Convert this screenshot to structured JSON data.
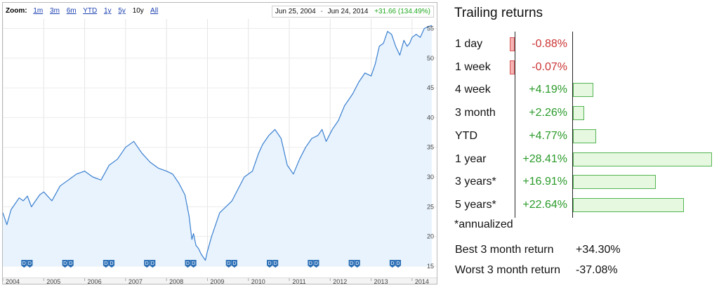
{
  "chart": {
    "zoom_label": "Zoom:",
    "zoom_options": [
      "1m",
      "3m",
      "6m",
      "YTD",
      "1y",
      "5y",
      "10y",
      "All"
    ],
    "zoom_active": "10y",
    "range_start": "Jun 25, 2004",
    "range_sep": "-",
    "range_end": "Jun 24, 2014",
    "range_change": "+31.66 (134.49%)",
    "line_color": "#3a7fd0",
    "fill_color": "#e8f3fd",
    "flag_color": "#2c6fb5"
  },
  "chart_data": {
    "type": "area",
    "x": [
      2004.0,
      2004.1,
      2004.2,
      2004.3,
      2004.4,
      2004.5,
      2004.6,
      2004.7,
      2004.8,
      2004.9,
      2005.0,
      2005.2,
      2005.4,
      2005.6,
      2005.8,
      2006.0,
      2006.2,
      2006.4,
      2006.6,
      2006.8,
      2007.0,
      2007.2,
      2007.4,
      2007.6,
      2007.8,
      2008.0,
      2008.15,
      2008.3,
      2008.45,
      2008.55,
      2008.62,
      2008.66,
      2008.72,
      2008.78,
      2008.85,
      2008.95,
      2009.0,
      2009.1,
      2009.2,
      2009.3,
      2009.45,
      2009.6,
      2009.75,
      2009.9,
      2010.1,
      2010.25,
      2010.35,
      2010.5,
      2010.65,
      2010.8,
      2010.95,
      2011.1,
      2011.25,
      2011.4,
      2011.55,
      2011.7,
      2011.8,
      2011.9,
      2012.05,
      2012.2,
      2012.35,
      2012.55,
      2012.7,
      2012.85,
      2013.0,
      2013.1,
      2013.2,
      2013.3,
      2013.4,
      2013.5,
      2013.6,
      2013.7,
      2013.8,
      2013.88,
      2013.94,
      2014.0,
      2014.1,
      2014.2,
      2014.3,
      2014.4,
      2014.48
    ],
    "y": [
      24.0,
      22.0,
      24.5,
      25.5,
      26.5,
      26.0,
      26.8,
      25.0,
      26.0,
      27.0,
      27.5,
      26.0,
      28.5,
      29.5,
      30.5,
      31.0,
      30.0,
      29.5,
      32.0,
      33.0,
      35.0,
      36.0,
      34.0,
      32.5,
      31.5,
      31.0,
      30.5,
      29.0,
      27.0,
      23.5,
      19.5,
      20.5,
      18.5,
      18.0,
      17.0,
      16.0,
      17.5,
      20.0,
      22.0,
      24.0,
      25.0,
      26.0,
      28.0,
      30.0,
      31.0,
      34.0,
      35.5,
      37.0,
      38.0,
      36.5,
      32.0,
      30.5,
      33.0,
      35.0,
      36.5,
      37.0,
      38.0,
      36.0,
      38.0,
      39.5,
      42.0,
      44.0,
      46.0,
      47.5,
      47.0,
      49.0,
      52.0,
      52.5,
      54.5,
      54.0,
      52.0,
      50.5,
      53.0,
      52.0,
      52.5,
      53.5,
      54.0,
      53.5,
      55.0,
      55.3,
      55.5
    ],
    "xlabel": "",
    "ylabel": "",
    "xlim": [
      2004.0,
      2014.5
    ],
    "ylim": [
      15,
      56
    ],
    "x_ticks": [
      "2004",
      "2005",
      "2006",
      "2007",
      "2008",
      "2009",
      "2010",
      "2011",
      "2012",
      "2013",
      "2014"
    ],
    "y_ticks": [
      "15",
      "20",
      "25",
      "30",
      "35",
      "40",
      "45",
      "50",
      "55"
    ],
    "dividend_flags": [
      2004.52,
      2004.66,
      2005.52,
      2005.66,
      2006.52,
      2006.66,
      2007.52,
      2007.66,
      2008.52,
      2008.66,
      2009.52,
      2009.66,
      2010.52,
      2010.66,
      2011.52,
      2011.66,
      2012.52,
      2012.66,
      2013.52,
      2013.66
    ],
    "flag_letter": "D",
    "grid": true
  },
  "returns": {
    "title": "Trailing returns",
    "rows": [
      {
        "label": "1 day",
        "value": "-0.88%",
        "num": -0.88
      },
      {
        "label": "1 week",
        "value": "-0.07%",
        "num": -0.07
      },
      {
        "label": "4 week",
        "value": "+4.19%",
        "num": 4.19
      },
      {
        "label": "3 month",
        "value": "+2.26%",
        "num": 2.26
      },
      {
        "label": "YTD",
        "value": "+4.77%",
        "num": 4.77
      },
      {
        "label": "1 year",
        "value": "+28.41%",
        "num": 28.41
      },
      {
        "label": "3 years*",
        "value": "+16.91%",
        "num": 16.91
      },
      {
        "label": "5 years*",
        "value": "+22.64%",
        "num": 22.64
      }
    ],
    "annotated": "*annualized",
    "best_label": "Best 3 month return",
    "best_value": "+34.30%",
    "worst_label": "Worst 3 month return",
    "worst_value": "-37.08%"
  }
}
